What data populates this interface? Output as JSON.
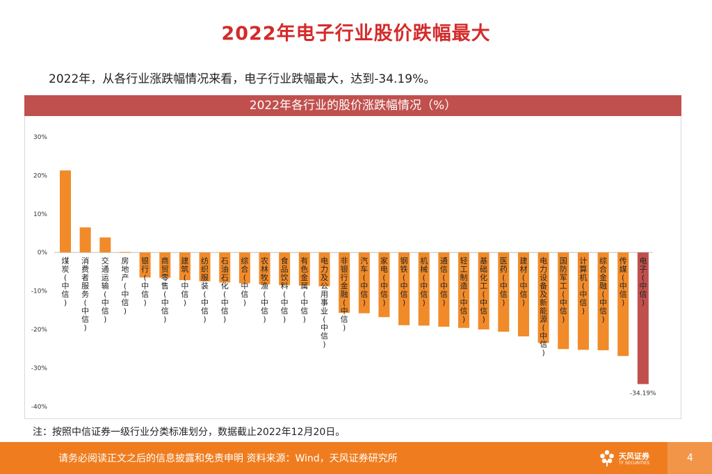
{
  "page": {
    "title": "2022年电子行业股价跌幅最大",
    "subtitle": "2022年，从各行业涨跌幅情况来看，电子行业跌幅最大，达到-34.19%。",
    "chart_banner": "2022年各行业的股价涨跌幅情况（%）",
    "note": "注：按照中信证券一级行业分类标准划分，数据截止2022年12月20日。"
  },
  "footer": {
    "disclaimer": "请务必阅读正文之后的信息披露和免责申明   资料来源：Wind，天风证券研究所",
    "logo_name": "天风证券",
    "logo_sub": "TF SECURITIES",
    "page_number": "4"
  },
  "colors": {
    "title_red": "#d42a2a",
    "banner_red": "#c0504d",
    "bar_orange": "#f18b2a",
    "bar_highlight": "#c0504d",
    "footer_orange": "#ef7d1f"
  },
  "chart_data": {
    "type": "bar",
    "title": "2022年各行业的股价涨跌幅情况（%）",
    "xlabel": "",
    "ylabel": "",
    "ylim": [
      -40,
      30
    ],
    "yticks": [
      30,
      20,
      10,
      0,
      -10,
      -20,
      -30,
      -40
    ],
    "ytick_labels": [
      "30%",
      "20%",
      "10%",
      "0%",
      "-10%",
      "-20%",
      "-30%",
      "-40%"
    ],
    "grid": false,
    "legend": "none",
    "categories": [
      "煤炭(中信)",
      "消费者服务(中信)",
      "交通运输(中信)",
      "房地产(中信)",
      "银行(中信)",
      "商贸零售(中信)",
      "建筑(中信)",
      "纺织服装(中信)",
      "石油石化(中信)",
      "综合(中信)",
      "农林牧渔(中信)",
      "食品饮料(中信)",
      "有色金属(中信)",
      "电力及公用事业(中信)",
      "非银行金融(中信)",
      "汽车(中信)",
      "家电(中信)",
      "钢铁(中信)",
      "机械(中信)",
      "通信(中信)",
      "轻工制造(中信)",
      "基础化工(中信)",
      "医药(中信)",
      "建材(中信)",
      "电力设备及新能源(中信)",
      "国防军工(中信)",
      "计算机(中信)",
      "综合金融(中信)",
      "传媒(中信)",
      "电子(中信)"
    ],
    "values": [
      21.3,
      6.5,
      3.9,
      0.1,
      -6.5,
      -6.6,
      -7.2,
      -7.5,
      -7.8,
      -8.0,
      -8.3,
      -8.5,
      -8.6,
      -8.8,
      -15.7,
      -15.8,
      -16.8,
      -18.9,
      -19.0,
      -19.3,
      -19.6,
      -20.0,
      -20.6,
      -21.8,
      -23.5,
      -25.1,
      -25.3,
      -25.4,
      -26.9,
      -34.19
    ],
    "highlight_index": 29,
    "data_labels": [
      {
        "index": 29,
        "text": "-34.19%"
      }
    ]
  }
}
